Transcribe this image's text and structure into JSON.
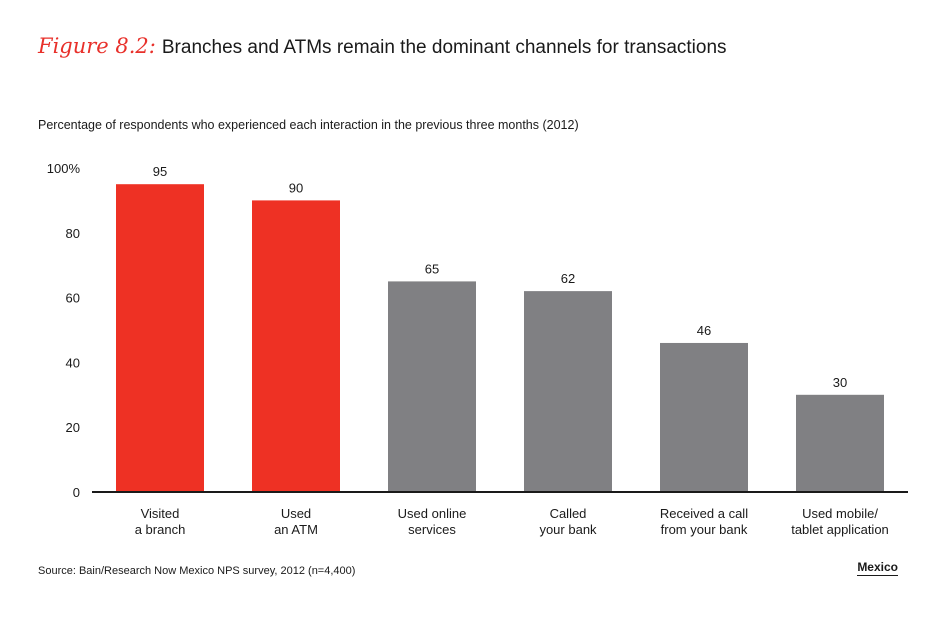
{
  "header": {
    "figure_label": "Figure 8.2:",
    "title": "Branches and ATMs remain the dominant channels for transactions"
  },
  "footer": {
    "source": "Source: Bain/Research Now Mexico NPS survey, 2012 (n=4,400)",
    "region": "Mexico"
  },
  "chart_data": {
    "type": "bar",
    "title": "Branches and ATMs remain the dominant channels for transactions",
    "subtitle": "Percentage of respondents who experienced each interaction in the previous three months (2012)",
    "categories": [
      [
        "Visited",
        "a branch"
      ],
      [
        "Used",
        "an ATM"
      ],
      [
        "Used online",
        "services"
      ],
      [
        "Called",
        "your bank"
      ],
      [
        "Received a call",
        "from your bank"
      ],
      [
        "Used mobile/",
        "tablet application"
      ]
    ],
    "values": [
      95,
      90,
      65,
      62,
      46,
      30
    ],
    "bar_colors": [
      "#ee3124",
      "#ee3124",
      "#808083",
      "#808083",
      "#808083",
      "#808083"
    ],
    "ylim": [
      0,
      100
    ],
    "yticks": [
      "0",
      "20",
      "40",
      "60",
      "80",
      "100%"
    ],
    "grid": false,
    "legend": "none"
  }
}
